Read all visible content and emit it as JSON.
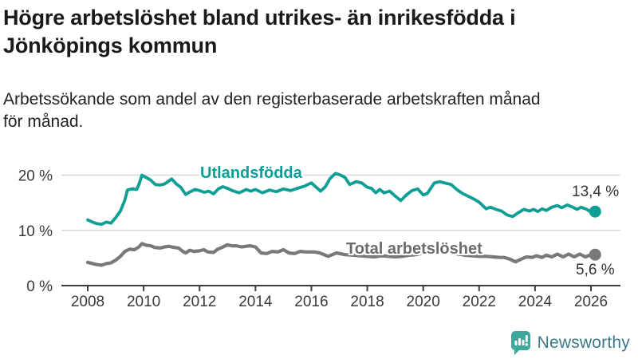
{
  "header": {
    "title_line1": "Högre arbetslöshet bland utrikes- än inrikesfödda i",
    "title_line2": "Jönköpings kommun",
    "subtitle_line1": "Arbetssökande som andel av den registerbaserade arbetskraften månad",
    "subtitle_line2": "för månad."
  },
  "chart_data": {
    "type": "line",
    "title": "Högre arbetslöshet bland utrikes- än inrikesfödda i Jönköpings kommun",
    "subtitle": "Arbetssökande som andel av den registerbaserade arbetskraften månad för månad.",
    "xlabel": "",
    "ylabel": "",
    "x_axis": {
      "tick_years": [
        2008,
        2010,
        2012,
        2014,
        2016,
        2018,
        2020,
        2022,
        2024,
        2026
      ]
    },
    "y_axis": {
      "ticks": [
        {
          "value": 0,
          "label": "0 %"
        },
        {
          "value": 10,
          "label": "10 %"
        },
        {
          "value": 20,
          "label": "20 %"
        }
      ],
      "ylim": [
        0,
        21
      ],
      "grid": true
    },
    "colors": {
      "grid": "#d9d9d9",
      "axis": "#3d3d3d",
      "tick_text": "#3a3a3a"
    },
    "series": [
      {
        "name": "Utlandsfödda",
        "color": "#0d9e96",
        "end_label": "13,4 %",
        "end_value": 13.4,
        "points": [
          [
            2008.0,
            11.9
          ],
          [
            2008.17,
            11.5
          ],
          [
            2008.33,
            11.2
          ],
          [
            2008.5,
            11.1
          ],
          [
            2008.67,
            11.5
          ],
          [
            2008.83,
            11.3
          ],
          [
            2009.0,
            12.3
          ],
          [
            2009.17,
            13.5
          ],
          [
            2009.33,
            15.5
          ],
          [
            2009.42,
            17.3
          ],
          [
            2009.58,
            17.5
          ],
          [
            2009.75,
            17.4
          ],
          [
            2009.83,
            18.3
          ],
          [
            2009.94,
            20.0
          ],
          [
            2010.08,
            19.6
          ],
          [
            2010.25,
            19.1
          ],
          [
            2010.42,
            18.3
          ],
          [
            2010.58,
            18.2
          ],
          [
            2010.75,
            18.4
          ],
          [
            2010.92,
            19.0
          ],
          [
            2011.0,
            19.3
          ],
          [
            2011.17,
            18.4
          ],
          [
            2011.33,
            17.8
          ],
          [
            2011.5,
            16.5
          ],
          [
            2011.67,
            17.0
          ],
          [
            2011.83,
            17.4
          ],
          [
            2012.0,
            17.2
          ],
          [
            2012.17,
            16.9
          ],
          [
            2012.33,
            17.1
          ],
          [
            2012.5,
            16.6
          ],
          [
            2012.67,
            17.5
          ],
          [
            2012.83,
            17.9
          ],
          [
            2013.0,
            17.6
          ],
          [
            2013.17,
            17.2
          ],
          [
            2013.42,
            16.8
          ],
          [
            2013.67,
            17.4
          ],
          [
            2013.83,
            17.1
          ],
          [
            2014.0,
            17.4
          ],
          [
            2014.25,
            16.8
          ],
          [
            2014.5,
            17.3
          ],
          [
            2014.75,
            17.0
          ],
          [
            2015.0,
            17.5
          ],
          [
            2015.25,
            17.2
          ],
          [
            2015.5,
            17.6
          ],
          [
            2015.75,
            18.0
          ],
          [
            2016.0,
            18.6
          ],
          [
            2016.17,
            17.8
          ],
          [
            2016.33,
            17.1
          ],
          [
            2016.5,
            17.9
          ],
          [
            2016.67,
            19.4
          ],
          [
            2016.86,
            20.3
          ],
          [
            2017.0,
            20.1
          ],
          [
            2017.2,
            19.6
          ],
          [
            2017.37,
            18.3
          ],
          [
            2017.6,
            18.8
          ],
          [
            2017.8,
            18.6
          ],
          [
            2018.0,
            17.8
          ],
          [
            2018.15,
            17.6
          ],
          [
            2018.3,
            16.8
          ],
          [
            2018.45,
            17.4
          ],
          [
            2018.6,
            16.8
          ],
          [
            2018.8,
            17.1
          ],
          [
            2019.0,
            16.2
          ],
          [
            2019.2,
            15.4
          ],
          [
            2019.4,
            16.4
          ],
          [
            2019.6,
            17.2
          ],
          [
            2019.8,
            17.5
          ],
          [
            2020.0,
            16.4
          ],
          [
            2020.15,
            16.7
          ],
          [
            2020.4,
            18.6
          ],
          [
            2020.6,
            18.8
          ],
          [
            2020.75,
            18.6
          ],
          [
            2021.0,
            18.3
          ],
          [
            2021.2,
            17.4
          ],
          [
            2021.4,
            16.7
          ],
          [
            2021.6,
            16.2
          ],
          [
            2021.8,
            15.7
          ],
          [
            2022.0,
            15.1
          ],
          [
            2022.25,
            13.9
          ],
          [
            2022.4,
            14.2
          ],
          [
            2022.6,
            13.8
          ],
          [
            2022.8,
            13.5
          ],
          [
            2023.0,
            12.8
          ],
          [
            2023.2,
            12.5
          ],
          [
            2023.4,
            13.2
          ],
          [
            2023.6,
            13.8
          ],
          [
            2023.8,
            13.5
          ],
          [
            2023.95,
            13.8
          ],
          [
            2024.1,
            13.4
          ],
          [
            2024.25,
            13.9
          ],
          [
            2024.4,
            13.6
          ],
          [
            2024.6,
            14.2
          ],
          [
            2024.8,
            14.5
          ],
          [
            2024.95,
            14.1
          ],
          [
            2025.15,
            14.6
          ],
          [
            2025.35,
            14.2
          ],
          [
            2025.5,
            13.8
          ],
          [
            2025.65,
            14.2
          ],
          [
            2025.85,
            13.8
          ],
          [
            2026.0,
            13.3
          ],
          [
            2026.15,
            13.4
          ]
        ]
      },
      {
        "name": "Total arbetslöshet",
        "color": "#78787d",
        "label_color": "#6b6b70",
        "end_label": "5,6 %",
        "end_value": 5.6,
        "points": [
          [
            2008.0,
            4.2
          ],
          [
            2008.17,
            4.0
          ],
          [
            2008.33,
            3.8
          ],
          [
            2008.5,
            3.7
          ],
          [
            2008.67,
            4.0
          ],
          [
            2008.83,
            4.1
          ],
          [
            2009.0,
            4.6
          ],
          [
            2009.17,
            5.3
          ],
          [
            2009.33,
            6.2
          ],
          [
            2009.5,
            6.6
          ],
          [
            2009.67,
            6.5
          ],
          [
            2009.83,
            7.0
          ],
          [
            2009.94,
            7.6
          ],
          [
            2010.1,
            7.3
          ],
          [
            2010.25,
            7.2
          ],
          [
            2010.4,
            6.9
          ],
          [
            2010.6,
            6.8
          ],
          [
            2010.75,
            7.0
          ],
          [
            2010.9,
            7.1
          ],
          [
            2011.1,
            6.9
          ],
          [
            2011.25,
            6.8
          ],
          [
            2011.4,
            6.2
          ],
          [
            2011.5,
            5.9
          ],
          [
            2011.65,
            6.4
          ],
          [
            2011.8,
            6.2
          ],
          [
            2012.0,
            6.3
          ],
          [
            2012.15,
            6.5
          ],
          [
            2012.3,
            6.1
          ],
          [
            2012.5,
            6.0
          ],
          [
            2012.65,
            6.6
          ],
          [
            2012.8,
            6.9
          ],
          [
            2013.0,
            7.4
          ],
          [
            2013.15,
            7.2
          ],
          [
            2013.3,
            7.2
          ],
          [
            2013.5,
            7.0
          ],
          [
            2013.65,
            7.1
          ],
          [
            2013.8,
            7.2
          ],
          [
            2014.0,
            7.0
          ],
          [
            2014.2,
            5.9
          ],
          [
            2014.4,
            5.8
          ],
          [
            2014.6,
            6.2
          ],
          [
            2014.8,
            6.1
          ],
          [
            2015.0,
            6.5
          ],
          [
            2015.2,
            5.9
          ],
          [
            2015.4,
            5.8
          ],
          [
            2015.6,
            6.2
          ],
          [
            2015.8,
            6.1
          ],
          [
            2016.1,
            6.1
          ],
          [
            2016.3,
            5.9
          ],
          [
            2016.6,
            5.3
          ],
          [
            2016.9,
            5.9
          ],
          [
            2017.2,
            5.6
          ],
          [
            2017.5,
            5.5
          ],
          [
            2017.75,
            5.4
          ],
          [
            2018.0,
            5.3
          ],
          [
            2018.25,
            5.2
          ],
          [
            2018.5,
            5.4
          ],
          [
            2018.75,
            5.3
          ],
          [
            2019.0,
            5.2
          ],
          [
            2019.25,
            5.3
          ],
          [
            2019.5,
            5.5
          ],
          [
            2019.75,
            5.6
          ],
          [
            2020.0,
            5.9
          ],
          [
            2020.25,
            6.4
          ],
          [
            2020.5,
            6.3
          ],
          [
            2020.75,
            6.1
          ],
          [
            2021.0,
            5.9
          ],
          [
            2021.25,
            5.7
          ],
          [
            2021.5,
            5.5
          ],
          [
            2021.75,
            5.4
          ],
          [
            2022.0,
            5.3
          ],
          [
            2022.25,
            5.3
          ],
          [
            2022.5,
            5.2
          ],
          [
            2022.75,
            5.1
          ],
          [
            2022.9,
            5.1
          ],
          [
            2023.1,
            4.8
          ],
          [
            2023.3,
            4.3
          ],
          [
            2023.5,
            4.8
          ],
          [
            2023.7,
            5.2
          ],
          [
            2023.9,
            5.1
          ],
          [
            2024.05,
            5.4
          ],
          [
            2024.25,
            5.1
          ],
          [
            2024.4,
            5.5
          ],
          [
            2024.6,
            5.2
          ],
          [
            2024.8,
            5.7
          ],
          [
            2025.0,
            5.2
          ],
          [
            2025.2,
            5.7
          ],
          [
            2025.4,
            5.2
          ],
          [
            2025.6,
            5.7
          ],
          [
            2025.8,
            5.2
          ],
          [
            2025.95,
            5.5
          ],
          [
            2026.15,
            5.6
          ]
        ]
      }
    ],
    "legend_position": "inline-labels"
  },
  "footer": {
    "brand": "Newsworthy",
    "brand_color": "#3b7a88",
    "icon_color": "#3da79c"
  }
}
